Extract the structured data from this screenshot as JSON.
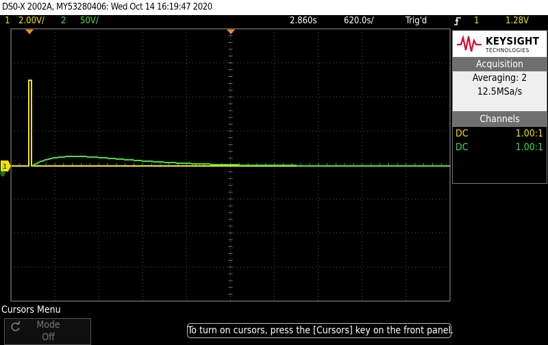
{
  "title": "DS0-X 2002A, MY53280406: Wed Oct 14 16:19:47 2020",
  "status": {
    "ch1_num": "1",
    "ch1_scale": "2.00V/",
    "ch2_num": "2",
    "ch2_scale": "50V/",
    "time_delay": "2.860s",
    "time_scale": "620.0s/",
    "trigger_state": "Trig'd",
    "trigger_icon": "trigger-rising-edge-icon",
    "trigger_source": "1",
    "trigger_level": "1.28V"
  },
  "brand": {
    "name": "KEYSIGHT",
    "subtitle": "TECHNOLOGIES"
  },
  "acquisition": {
    "header": "Acquisition",
    "mode": "Averaging: 2",
    "rate": "12.5MSa/s"
  },
  "channels": {
    "header": "Channels",
    "rows": [
      {
        "coupling": "DC",
        "probe": "1.00:1",
        "color": "#f2e400"
      },
      {
        "coupling": "DC",
        "probe": "1.00:1",
        "color": "#45e23a"
      }
    ]
  },
  "softmenu": {
    "title": "Cursors Menu",
    "mode_label": "Mode",
    "mode_value": "Off"
  },
  "message": "To turn on cursors, press the [Cursors] key on the front panel.",
  "colors": {
    "ch1": "#f2e400",
    "ch2": "#45e23a",
    "marker": "#f08a1c",
    "grid": "#5a5a5a"
  },
  "trace": {
    "ch1_description": "flat at ground with a short pulse at start",
    "ch2_shape": "fast rise then slow exponential decay"
  }
}
